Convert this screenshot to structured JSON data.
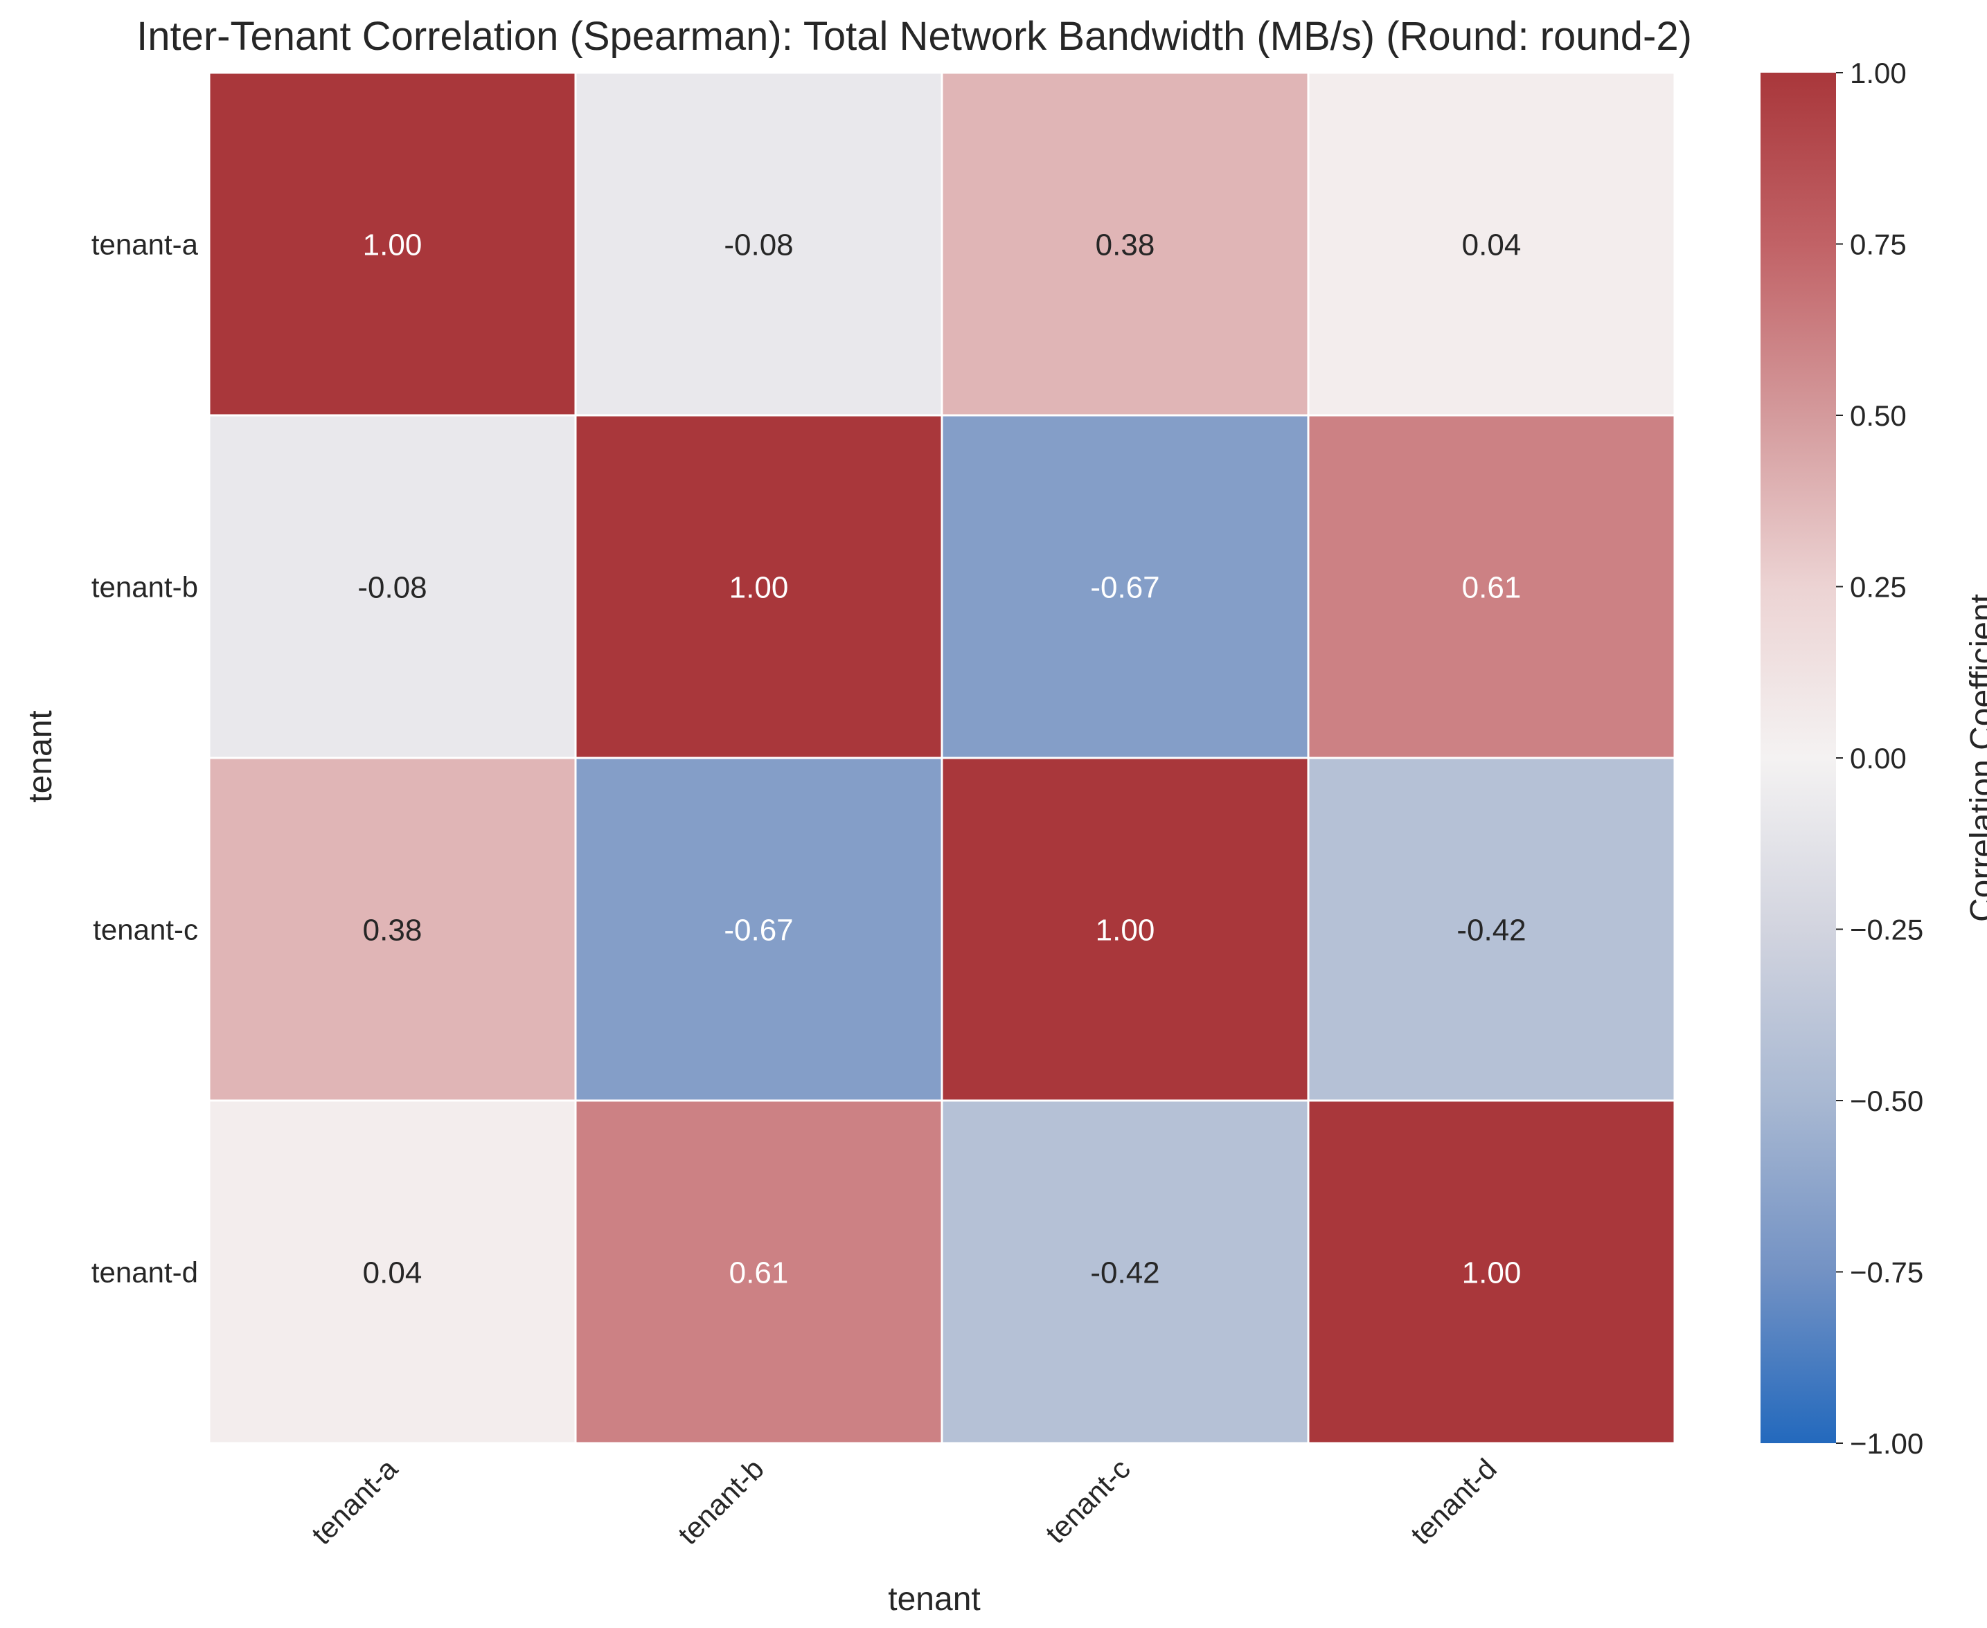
{
  "chart_data": {
    "type": "heatmap",
    "title": "Inter-Tenant Correlation (Spearman): Total Network Bandwidth (MB/s) (Round: round-2)",
    "xlabel": "tenant",
    "ylabel": "tenant",
    "x_categories": [
      "tenant-a",
      "tenant-b",
      "tenant-c",
      "tenant-d"
    ],
    "y_categories": [
      "tenant-a",
      "tenant-b",
      "tenant-c",
      "tenant-d"
    ],
    "values": [
      [
        1.0,
        -0.08,
        0.38,
        0.04
      ],
      [
        -0.08,
        1.0,
        -0.67,
        0.61
      ],
      [
        0.38,
        -0.67,
        1.0,
        -0.42
      ],
      [
        0.04,
        0.61,
        -0.42,
        1.0
      ]
    ],
    "value_labels": [
      [
        "1.00",
        "-0.08",
        "0.38",
        "0.04"
      ],
      [
        "-0.08",
        "1.00",
        "-0.67",
        "0.61"
      ],
      [
        "0.38",
        "-0.67",
        "1.00",
        "-0.42"
      ],
      [
        "0.04",
        "0.61",
        "-0.42",
        "1.00"
      ]
    ],
    "vmin": -1.0,
    "vmax": 1.0,
    "colormap": "vlag",
    "colorbar": {
      "label": "Correlation Coefficient",
      "ticks": [
        1.0,
        0.75,
        0.5,
        0.25,
        0.0,
        -0.25,
        -0.5,
        -0.75,
        -1.0
      ],
      "tick_labels": [
        "1.00",
        "0.75",
        "0.50",
        "0.25",
        "0.00",
        "−0.25",
        "−0.50",
        "−0.75",
        "−1.00"
      ]
    },
    "grid": false
  }
}
